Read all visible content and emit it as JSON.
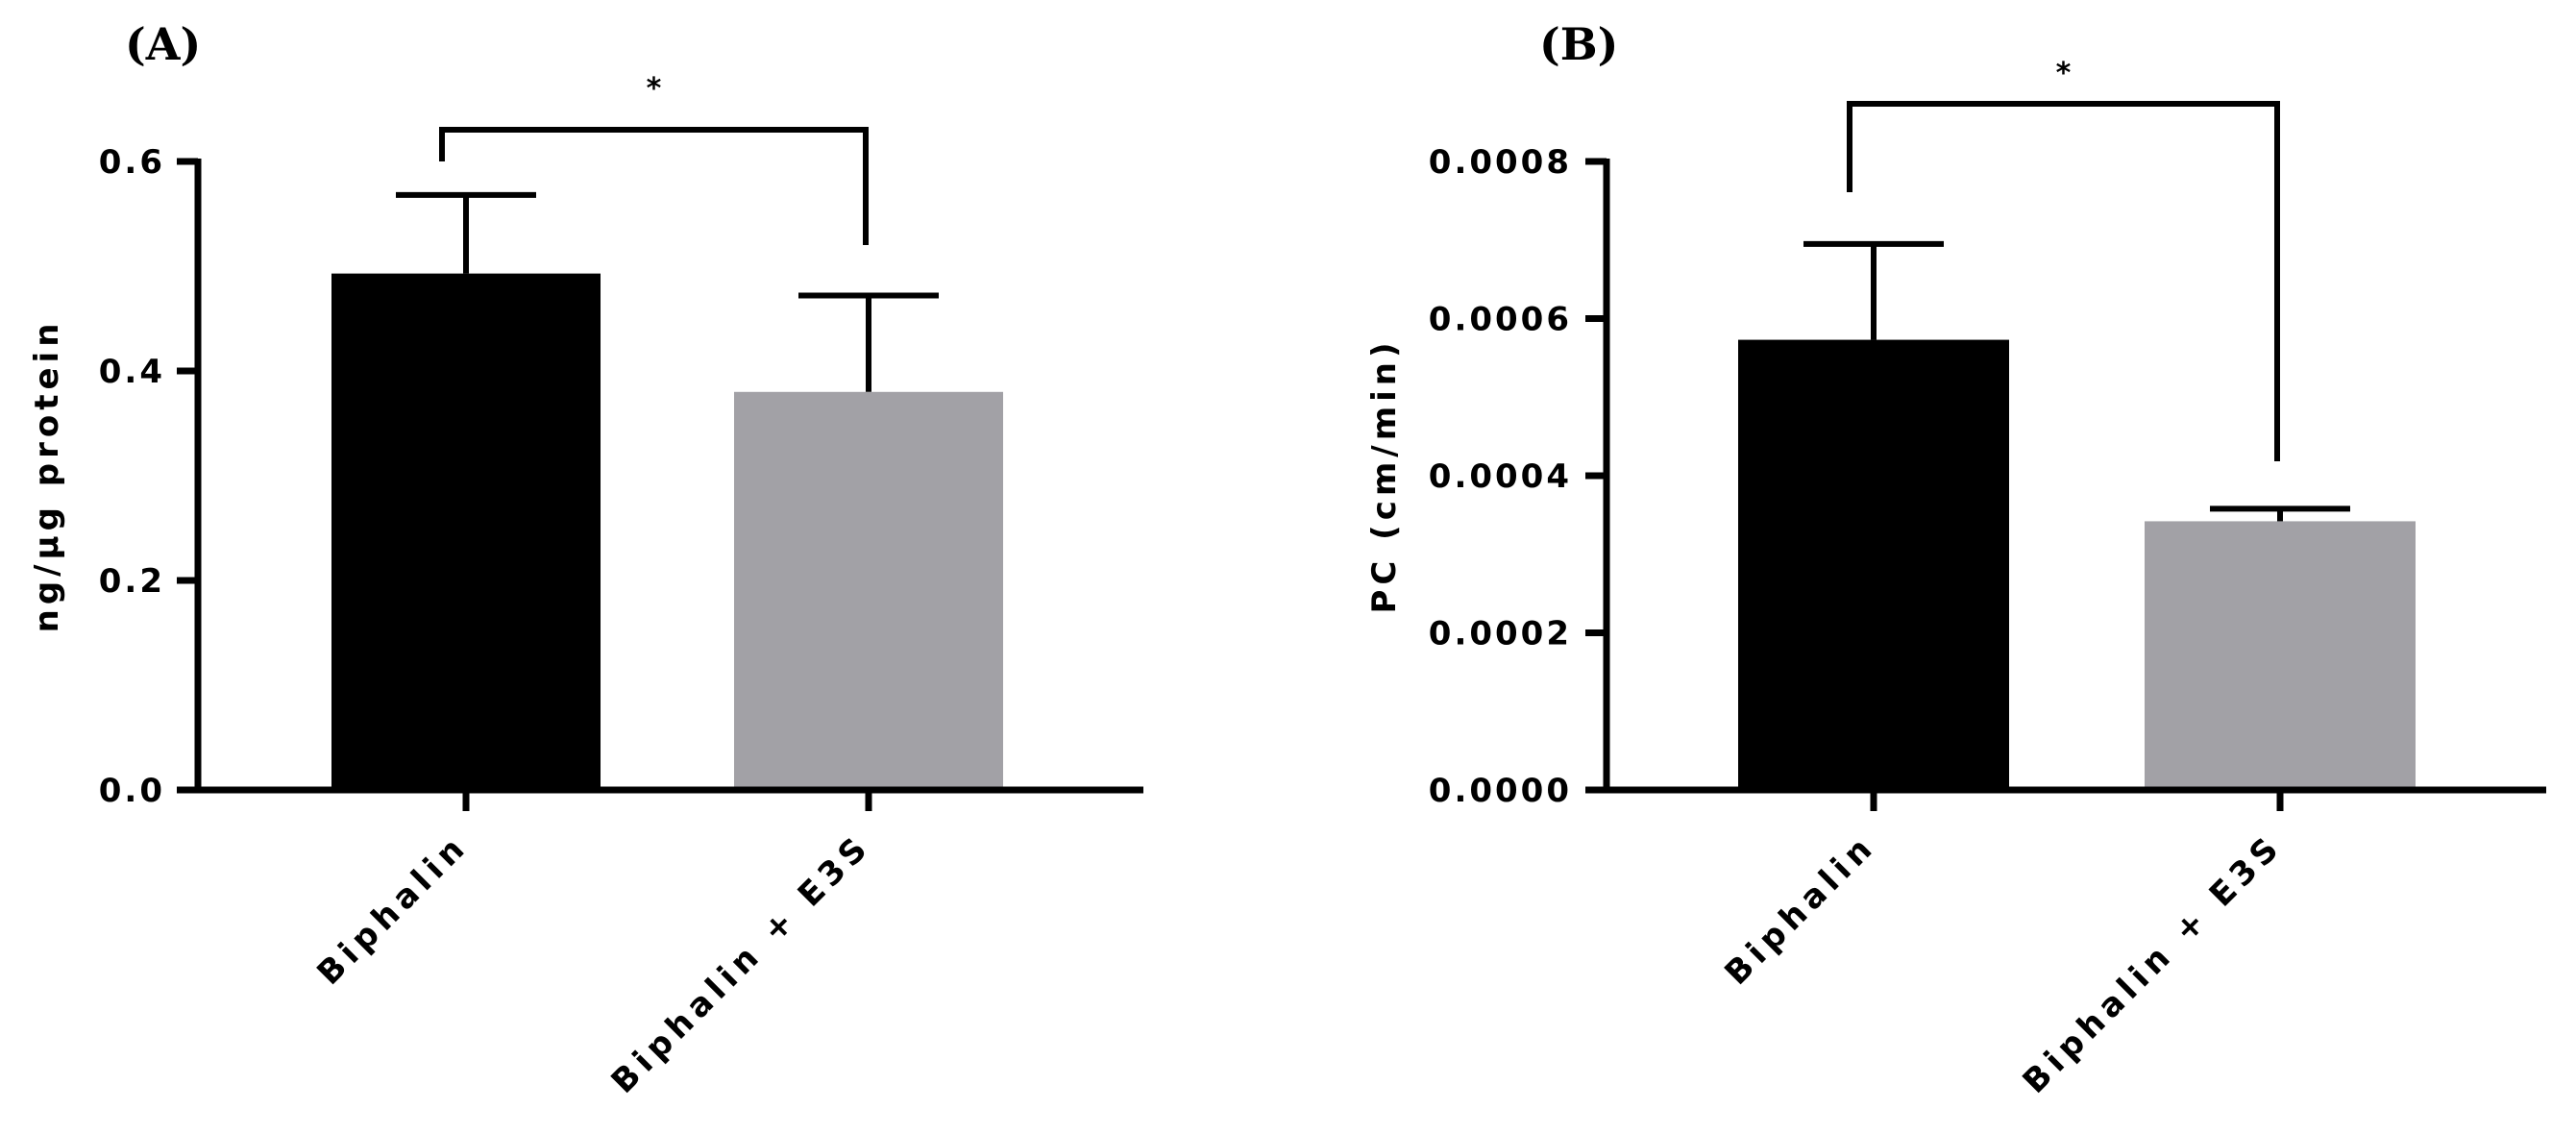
{
  "chart_data": [
    {
      "type": "bar",
      "panel_label": "(A)",
      "categories": [
        "Biphalin",
        "Biphalin + E3S"
      ],
      "values": [
        0.493,
        0.38
      ],
      "errors": [
        0.075,
        0.092
      ],
      "colors": [
        "#000000",
        "#a2a1a6"
      ],
      "xlabel": "",
      "ylabel": "ng/µg protein",
      "ylim": [
        0,
        0.6
      ],
      "yticks": [
        0.0,
        0.2,
        0.4,
        0.6
      ],
      "ytick_labels": [
        "0.0",
        "0.2",
        "0.4",
        "0.6"
      ],
      "significance": "*",
      "grid": false
    },
    {
      "type": "bar",
      "panel_label": "(B)",
      "categories": [
        "Biphalin",
        "Biphalin + E3S"
      ],
      "values": [
        0.000573,
        0.000342
      ],
      "errors": [
        0.000122,
        1.6e-05
      ],
      "colors": [
        "#000000",
        "#a2a1a6"
      ],
      "xlabel": "",
      "ylabel": "PC (cm/min)",
      "ylim": [
        0,
        0.0008
      ],
      "yticks": [
        0.0,
        0.0002,
        0.0004,
        0.0006,
        0.0008
      ],
      "ytick_labels": [
        "0.0000",
        "0.0002",
        "0.0004",
        "0.0006",
        "0.0008"
      ],
      "significance": "*",
      "grid": false
    }
  ]
}
